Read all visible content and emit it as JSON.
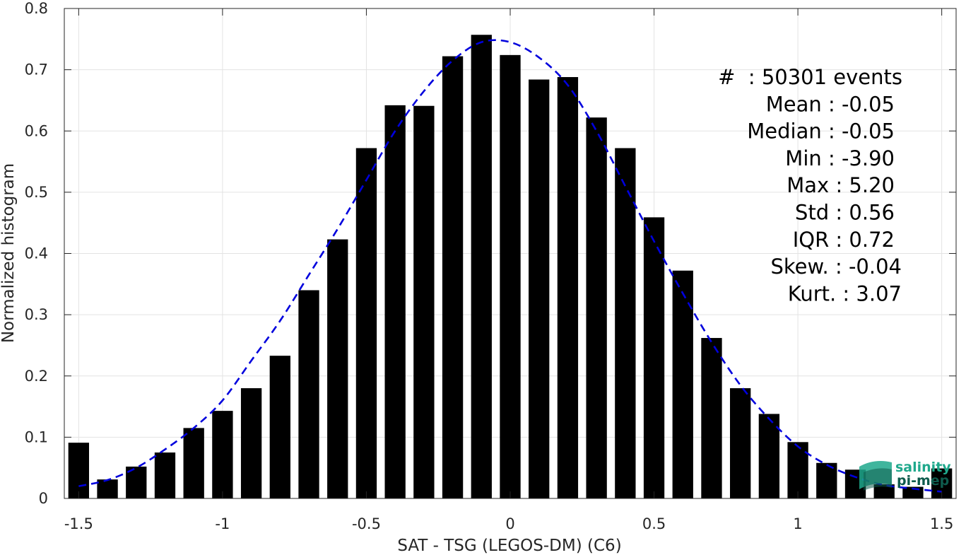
{
  "chart_data": {
    "type": "bar",
    "xlabel": "SAT - TSG (LEGOS-DM) (C6)",
    "ylabel": "Normalized histogram",
    "xlim": [
      -1.55,
      1.55
    ],
    "ylim": [
      0,
      0.8
    ],
    "xticks": [
      -1.5,
      -1,
      -0.5,
      0,
      0.5,
      1,
      1.5
    ],
    "xtick_labels": [
      "-1.5",
      "-1",
      "-0.5",
      "0",
      "0.5",
      "1",
      "1.5"
    ],
    "yticks": [
      0,
      0.1,
      0.2,
      0.3,
      0.4,
      0.5,
      0.6,
      0.7,
      0.8
    ],
    "ytick_labels": [
      "0",
      "0.1",
      "0.2",
      "0.3",
      "0.4",
      "0.5",
      "0.6",
      "0.7",
      "0.8"
    ],
    "grid": true,
    "bar_color": "#000000",
    "fit_color": "#0000dd",
    "bins": {
      "x": [
        -1.5,
        -1.4,
        -1.3,
        -1.2,
        -1.1,
        -1.0,
        -0.9,
        -0.8,
        -0.7,
        -0.6,
        -0.5,
        -0.4,
        -0.3,
        -0.2,
        -0.1,
        0.0,
        0.1,
        0.2,
        0.3,
        0.4,
        0.5,
        0.6,
        0.7,
        0.8,
        0.9,
        1.0,
        1.1,
        1.2,
        1.3,
        1.4,
        1.5
      ],
      "values": [
        0.091,
        0.031,
        0.052,
        0.075,
        0.115,
        0.143,
        0.18,
        0.233,
        0.34,
        0.423,
        0.572,
        0.642,
        0.641,
        0.722,
        0.757,
        0.724,
        0.684,
        0.688,
        0.622,
        0.572,
        0.459,
        0.372,
        0.262,
        0.18,
        0.138,
        0.092,
        0.058,
        0.047,
        0.023,
        0.019,
        0.049
      ]
    },
    "fit": {
      "x": [
        -1.5,
        -1.4,
        -1.3,
        -1.2,
        -1.1,
        -1.0,
        -0.9,
        -0.8,
        -0.7,
        -0.6,
        -0.5,
        -0.4,
        -0.3,
        -0.2,
        -0.1,
        0.0,
        0.1,
        0.2,
        0.3,
        0.4,
        0.5,
        0.6,
        0.7,
        0.8,
        0.9,
        1.0,
        1.1,
        1.2,
        1.3,
        1.4,
        1.5
      ],
      "y": [
        0.02,
        0.03,
        0.05,
        0.08,
        0.115,
        0.16,
        0.225,
        0.29,
        0.365,
        0.44,
        0.52,
        0.6,
        0.665,
        0.715,
        0.745,
        0.745,
        0.72,
        0.675,
        0.6,
        0.51,
        0.42,
        0.335,
        0.255,
        0.185,
        0.13,
        0.085,
        0.055,
        0.035,
        0.022,
        0.016,
        0.011
      ]
    },
    "stats": [
      "#  : 50301 events",
      "Mean : -0.05",
      "Median : -0.05",
      "Min : -3.90",
      "Max : 5.20",
      "Std : 0.56",
      "IQR : 0.72",
      "Skew. : -0.04",
      "Kurt. : 3.07"
    ]
  },
  "logo": {
    "line1": "salinity",
    "line2": "pi-mep",
    "color_primary": "#1fa88c",
    "color_dark": "#0e5b4d"
  }
}
